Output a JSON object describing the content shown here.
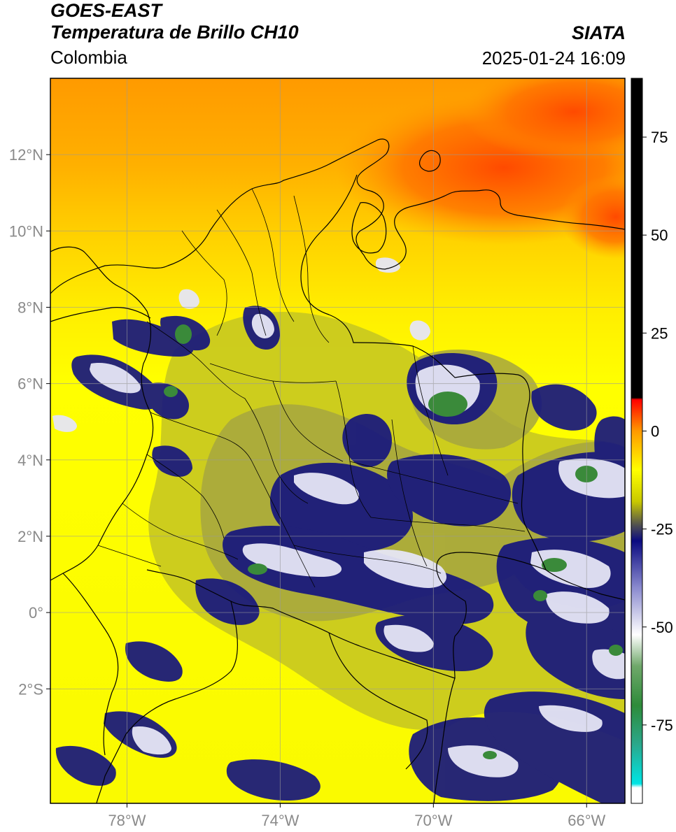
{
  "header": {
    "satellite": "GOES-EAST",
    "product": "Temperatura de Brillo CH10",
    "region": "Colombia",
    "agency": "SIATA",
    "datetime": "2025-01-24 16:09"
  },
  "map": {
    "lon_range": [
      -80,
      -65
    ],
    "lat_range": [
      -5,
      14
    ],
    "lat_ticks": [
      {
        "value": 12,
        "label": "12°N"
      },
      {
        "value": 10,
        "label": "10°N"
      },
      {
        "value": 8,
        "label": "8°N"
      },
      {
        "value": 6,
        "label": "6°N"
      },
      {
        "value": 4,
        "label": "4°N"
      },
      {
        "value": 2,
        "label": "2°N"
      },
      {
        "value": 0,
        "label": "0°"
      },
      {
        "value": -2,
        "label": "2°S"
      }
    ],
    "lon_ticks": [
      {
        "value": -78,
        "label": "78°W"
      },
      {
        "value": -74,
        "label": "74°W"
      },
      {
        "value": -70,
        "label": "70°W"
      },
      {
        "value": -66,
        "label": "66°W"
      }
    ],
    "grid": true
  },
  "colorbar": {
    "range": [
      -95,
      90
    ],
    "ticks": [
      {
        "value": 75,
        "label": "75"
      },
      {
        "value": 50,
        "label": "50"
      },
      {
        "value": 25,
        "label": "25"
      },
      {
        "value": 0,
        "label": "0"
      },
      {
        "value": -25,
        "label": "-25"
      },
      {
        "value": -50,
        "label": "-50"
      },
      {
        "value": -75,
        "label": "-75"
      }
    ],
    "stops": [
      {
        "v": -95,
        "c": "#ffffff"
      },
      {
        "v": -91,
        "c": "#ffffff"
      },
      {
        "v": -90,
        "c": "#00e5e5"
      },
      {
        "v": -80,
        "c": "#2aa88c"
      },
      {
        "v": -70,
        "c": "#2e8b3a"
      },
      {
        "v": -60,
        "c": "#6fa86a"
      },
      {
        "v": -52,
        "c": "#ffffff"
      },
      {
        "v": -40,
        "c": "#8a8acf"
      },
      {
        "v": -28,
        "c": "#0a0a80"
      },
      {
        "v": -24,
        "c": "#505050"
      },
      {
        "v": -18,
        "c": "#c8c800"
      },
      {
        "v": -10,
        "c": "#ffff00"
      },
      {
        "v": 0,
        "c": "#ff9900"
      },
      {
        "v": 8,
        "c": "#ff0000"
      },
      {
        "v": 8.5,
        "c": "#000000"
      },
      {
        "v": 90,
        "c": "#000000"
      }
    ]
  },
  "palette": {
    "yellow": "#ffff00",
    "yellow_dull": "#e6e600",
    "olive": "#a8a83c",
    "orange": "#ffb300",
    "red_orange": "#ff5a00",
    "navy": "#14147a",
    "cloud_white": "#e8e8f8",
    "green": "#3c8c3c"
  }
}
